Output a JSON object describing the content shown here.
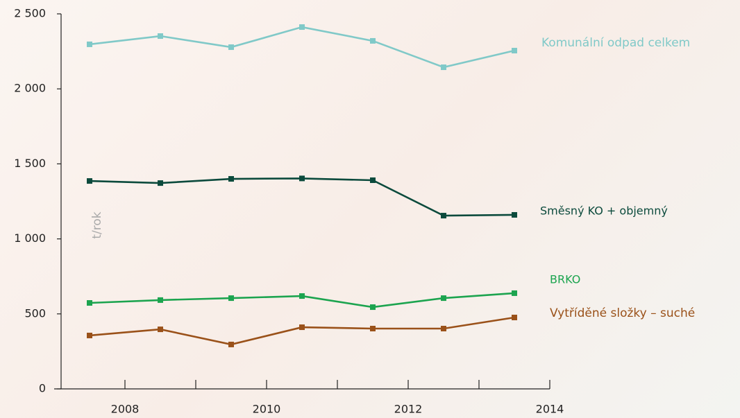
{
  "chart_data": {
    "type": "line",
    "y_label": "t/rok",
    "x": [
      2007.5,
      2008.5,
      2009.5,
      2010.5,
      2011.5,
      2012.5,
      2013.5
    ],
    "series": [
      {
        "name": "Komunální odpad celkem",
        "color": "#80c9c8",
        "values": [
          2297,
          2352,
          2278,
          2412,
          2320,
          2144,
          2255
        ]
      },
      {
        "name": "Směsný KO + objemný",
        "color": "#0b4a3c",
        "values": [
          1386,
          1372,
          1400,
          1403,
          1391,
          1155,
          1160
        ]
      },
      {
        "name": "BRKO",
        "color": "#1ca44f",
        "values": [
          573,
          592,
          605,
          619,
          545,
          605,
          638
        ]
      },
      {
        "name": "Vytříděné složky – suché",
        "color": "#9a5119",
        "values": [
          356,
          397,
          296,
          411,
          402,
          402,
          476
        ]
      }
    ],
    "xlim": [
      2007,
      2014
    ],
    "xticks": [
      2008,
      2010,
      2012,
      2014
    ],
    "xminor_ticks": [
      2009,
      2011,
      2013
    ],
    "ylim": [
      0,
      2500
    ],
    "yticks": [
      0,
      500,
      {
        "value": 1000,
        "label": "1 000"
      },
      {
        "value": 1500,
        "label": "1 500"
      },
      {
        "value": 2000,
        "label": "2 000"
      },
      {
        "value": 2500,
        "label": "2 500"
      }
    ],
    "grid": false
  }
}
